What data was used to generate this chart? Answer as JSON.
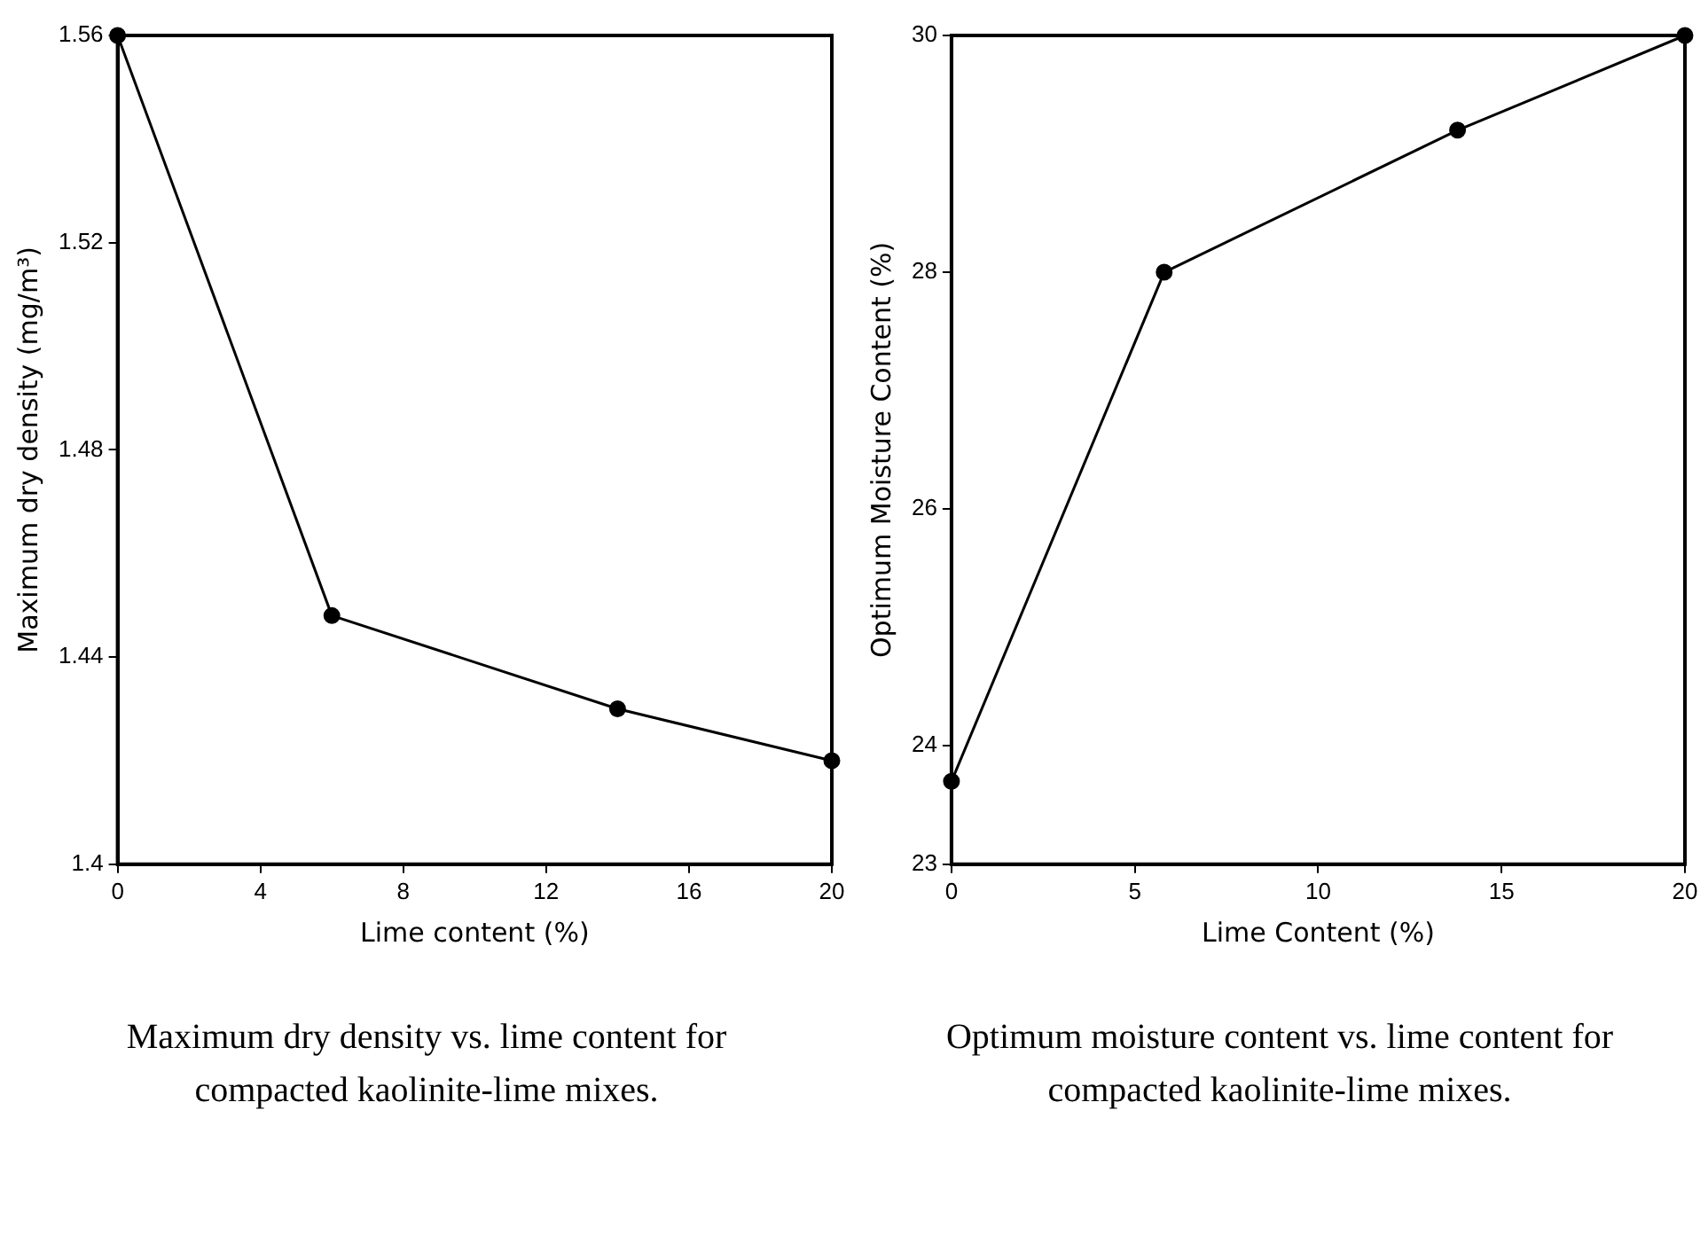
{
  "chart_data": [
    {
      "type": "line",
      "xlabel": "Lime content (%)",
      "ylabel": "Maximum dry density (mg/m³)",
      "x": [
        0,
        6,
        14,
        20
      ],
      "xlim": [
        0,
        20
      ],
      "xticks": [
        0,
        4,
        8,
        12,
        16,
        20
      ],
      "ylim": [
        1.4,
        1.56
      ],
      "yticks": [
        1.4,
        1.44,
        1.48,
        1.52,
        1.56
      ],
      "series": [
        {
          "color": "#000000",
          "values": [
            1.56,
            1.448,
            1.43,
            1.42
          ]
        }
      ],
      "grid": false,
      "legend": false,
      "marker": "circle",
      "line_style": "solid",
      "annotations": [
        "Maximum dry density vs. lime content for compacted kaolinite-lime mixes."
      ]
    },
    {
      "type": "line",
      "xlabel": "Lime Content (%)",
      "ylabel": "Optimum Moisture Content (%)",
      "x": [
        0,
        5.8,
        13.8,
        20
      ],
      "xlim": [
        0,
        20
      ],
      "xticks": [
        0,
        5,
        10,
        15,
        20
      ],
      "ylim": [
        23,
        30
      ],
      "yticks": [
        23,
        24,
        26,
        28,
        30
      ],
      "series": [
        {
          "color": "#000000",
          "values": [
            23.7,
            28.0,
            29.2,
            30.0
          ]
        }
      ],
      "grid": false,
      "legend": false,
      "marker": "circle",
      "line_style": "solid",
      "annotations": [
        "Optimum moisture content vs. lime content for compacted kaolinite-lime mixes."
      ]
    }
  ]
}
